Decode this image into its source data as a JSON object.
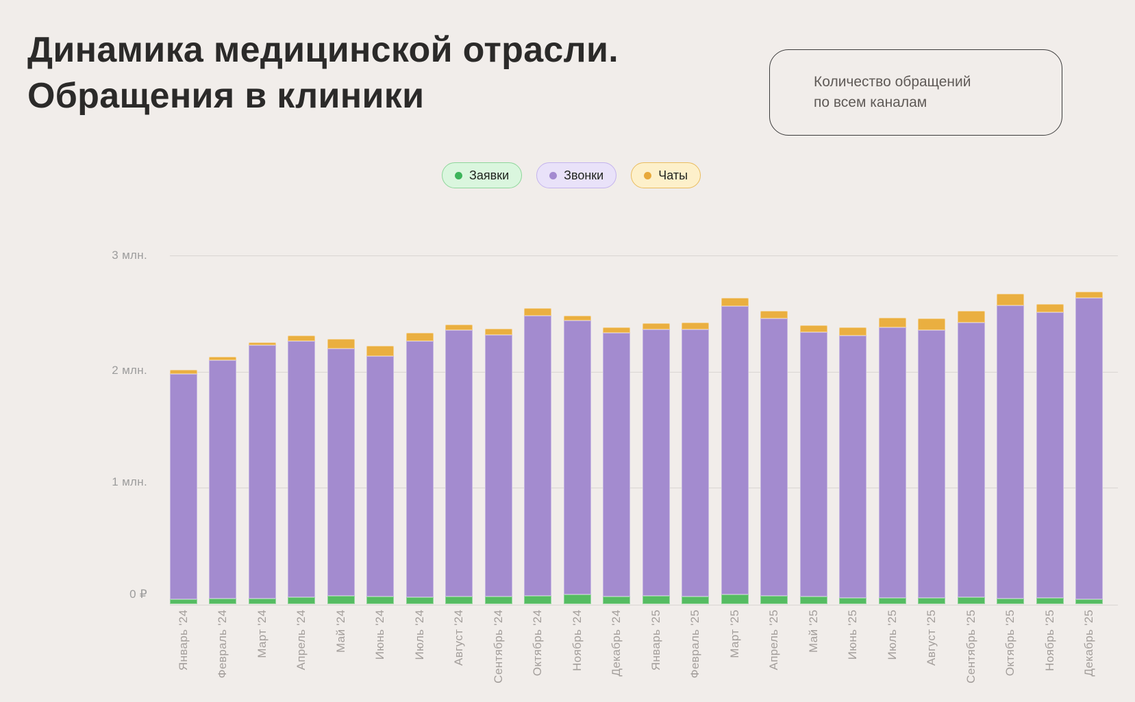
{
  "header": {
    "title_lines": [
      "Динамика медицинской отрасли.",
      "Обращения в клиники"
    ],
    "info_box": {
      "lines": [
        "Количество обращений",
        "по всем каналам"
      ]
    }
  },
  "legend": {
    "items": [
      {
        "label": "Заявки",
        "dot": "#3db45b",
        "bg": "#daf6de",
        "border": "#8ed69a"
      },
      {
        "label": "Звонки",
        "dot": "#a38ad0",
        "bg": "#e9e2f9",
        "border": "#c4b3ed"
      },
      {
        "label": "Чаты",
        "dot": "#e8a93b",
        "bg": "#fdf0ca",
        "border": "#e9bc5e"
      }
    ]
  },
  "chart_data": {
    "type": "bar",
    "stacked": true,
    "title": "Количество обращений по всем каналам",
    "unit": "млн обращений",
    "categories": [
      "Январь '24",
      "Февраль '24",
      "Март '24",
      "Апрель '24",
      "Май '24",
      "Июнь '24",
      "Июль '24",
      "Август '24",
      "Сентябрь '24",
      "Октябрь '24",
      "Ноябрь '24",
      "Декабрь '24",
      "Январь '25",
      "Февраль '25",
      "Март '25",
      "Апрель '25",
      "Май '25",
      "Июнь '25",
      "Июль '25",
      "Август '25",
      "Сентябрь '25",
      "Октябрь '25",
      "Ноябрь '25",
      "Декабрь '25"
    ],
    "series": [
      {
        "name": "Заявки",
        "color": "#55bc62",
        "stack_position": "bottom",
        "values": [
          0.043,
          0.047,
          0.049,
          0.057,
          0.071,
          0.065,
          0.061,
          0.065,
          0.066,
          0.071,
          0.081,
          0.063,
          0.071,
          0.066,
          0.081,
          0.071,
          0.063,
          0.055,
          0.055,
          0.055,
          0.057,
          0.047,
          0.051,
          0.043
        ]
      },
      {
        "name": "Звонки",
        "color": "#a38bcf",
        "stack_position": "middle",
        "values": [
          1.939,
          2.049,
          2.18,
          2.207,
          2.129,
          2.07,
          2.202,
          2.292,
          2.25,
          2.411,
          2.36,
          2.272,
          2.29,
          2.297,
          2.48,
          2.386,
          2.278,
          2.255,
          2.329,
          2.304,
          2.365,
          2.522,
          2.457,
          2.592
        ]
      },
      {
        "name": "Чаты",
        "color": "#eaaf40",
        "stack_position": "top",
        "values": [
          0.036,
          0.029,
          0.023,
          0.049,
          0.082,
          0.089,
          0.072,
          0.047,
          0.053,
          0.065,
          0.039,
          0.044,
          0.058,
          0.058,
          0.074,
          0.068,
          0.058,
          0.069,
          0.081,
          0.098,
          0.098,
          0.103,
          0.074,
          0.053
        ]
      }
    ],
    "totals": [
      2.018,
      2.125,
      2.252,
      2.313,
      2.282,
      2.224,
      2.335,
      2.404,
      2.369,
      2.547,
      2.48,
      2.379,
      2.419,
      2.421,
      2.635,
      2.525,
      2.399,
      2.379,
      2.465,
      2.457,
      2.52,
      2.672,
      2.582,
      2.688
    ],
    "y_ticks": [
      {
        "label": "3 млн.",
        "value": 3
      },
      {
        "label": "2 млн.",
        "value": 2
      },
      {
        "label": "1 млн.",
        "value": 1
      },
      {
        "label": "0 ₽",
        "value": 0
      }
    ],
    "ylim": [
      0,
      3.2
    ],
    "grid": true,
    "legend_position": "top-center"
  }
}
